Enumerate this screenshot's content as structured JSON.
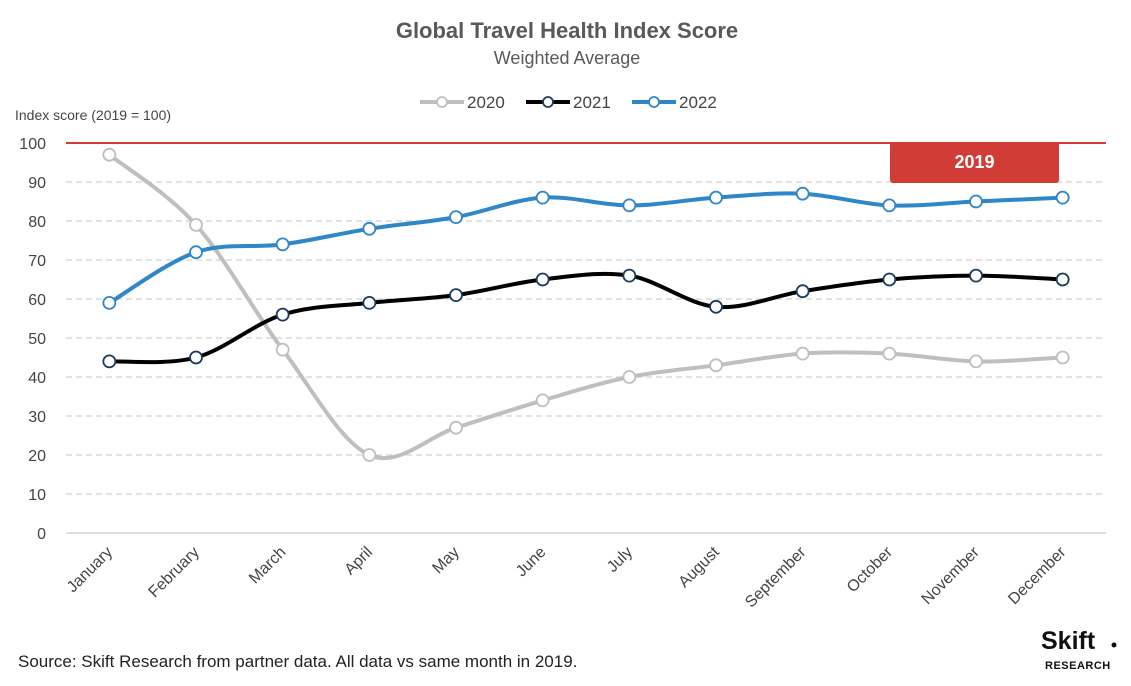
{
  "chart_data": {
    "type": "line",
    "title": "Global Travel Health Index Score",
    "subtitle": "Weighted Average",
    "ylabel": "Index score (2019 = 100)",
    "xlabel": "",
    "ylim": [
      0,
      100
    ],
    "yticks": [
      0,
      10,
      20,
      30,
      40,
      50,
      60,
      70,
      80,
      90,
      100
    ],
    "grid": "horizontal dashed",
    "legend_position": "top-center",
    "categories": [
      "January",
      "February",
      "March",
      "April",
      "May",
      "June",
      "July",
      "August",
      "September",
      "October",
      "November",
      "December"
    ],
    "series": [
      {
        "name": "2020",
        "color": "#bfbfbf",
        "values": [
          97,
          79,
          47,
          20,
          27,
          34,
          40,
          43,
          46,
          46,
          44,
          45
        ]
      },
      {
        "name": "2021",
        "color": "#000000",
        "values": [
          44,
          45,
          56,
          59,
          61,
          65,
          66,
          58,
          62,
          65,
          66,
          65
        ]
      },
      {
        "name": "2022",
        "color": "#2f86c8",
        "values": [
          59,
          72,
          74,
          78,
          81,
          86,
          84,
          86,
          87,
          84,
          85,
          86
        ]
      }
    ],
    "reference_line": {
      "value": 100,
      "label": "2019",
      "color": "#d23c37"
    }
  },
  "footer": {
    "source": "Source: Skift Research from partner data. All data vs same month in 2019."
  },
  "logo": {
    "main": "Skift",
    "sub": "RESEARCH"
  }
}
